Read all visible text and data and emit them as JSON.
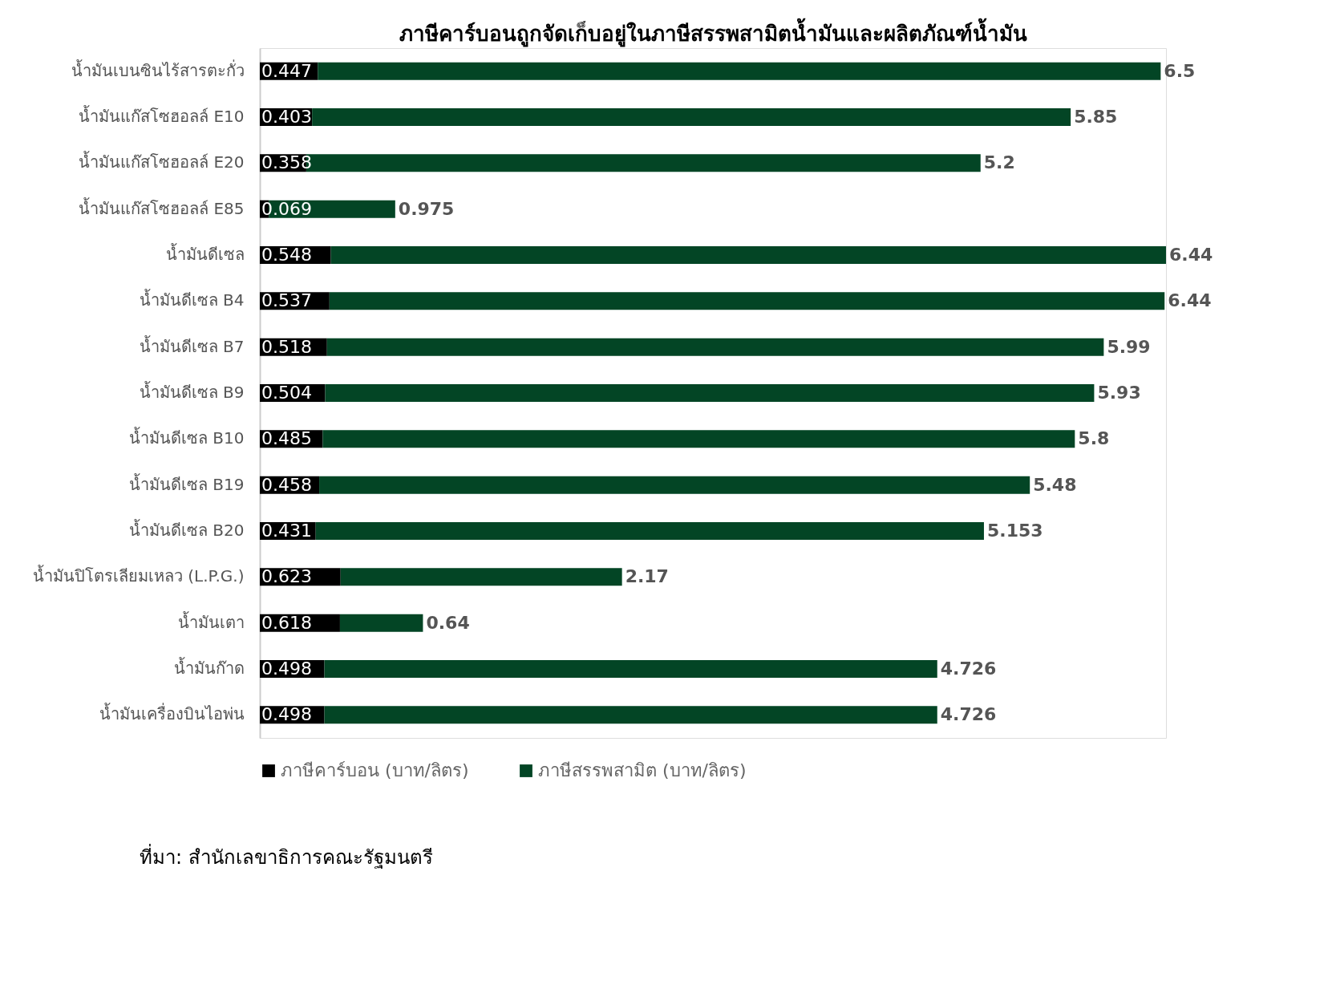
{
  "chart_data": {
    "type": "bar",
    "orientation": "horizontal",
    "stacked": true,
    "data_labels": true,
    "legend": "bottom",
    "grid": false,
    "title": "ภาษีคาร์บอนถูกจัดเก็บอยู่ในภาษีสรรพสามิตน้ำมันและผลิตภัณฑ์น้ำมัน",
    "categories": [
      "น้ำมันเบนซินไร้สารตะกั่ว",
      "น้ำมันแก๊สโซฮอลล์ E10",
      "น้ำมันแก๊สโซฮอลล์ E20",
      "น้ำมันแก๊สโซฮอลล์ E85",
      "น้ำมันดีเซล",
      "น้ำมันดีเซล B4",
      "น้ำมันดีเซล B7",
      "น้ำมันดีเซล B9",
      "น้ำมันดีเซล B10",
      "น้ำมันดีเซล B19",
      "น้ำมันดีเซล B20",
      "น้ำมันปิโตรเลียมเหลว (L.P.G.)",
      "น้ำมันเตา",
      "น้ำมันก๊าด",
      "น้ำมันเครื่องบินไอพ่น"
    ],
    "series": [
      {
        "name": "ภาษีคาร์บอน (บาท/ลิตร)",
        "color": "#000000",
        "values": [
          0.447,
          0.403,
          0.358,
          0.069,
          0.548,
          0.537,
          0.518,
          0.504,
          0.485,
          0.458,
          0.431,
          0.623,
          0.618,
          0.498,
          0.498
        ]
      },
      {
        "name": "ภาษีสรรพสามิต (บาท/ลิตร)",
        "color": "#034525",
        "values": [
          6.5,
          5.85,
          5.2,
          0.975,
          6.44,
          6.44,
          5.99,
          5.93,
          5.8,
          5.48,
          5.153,
          2.17,
          0.64,
          4.726,
          4.726
        ]
      }
    ],
    "annotations": [
      "ที่มา: สำนักเลขาธิการคณะรัฐมนตรี"
    ]
  }
}
